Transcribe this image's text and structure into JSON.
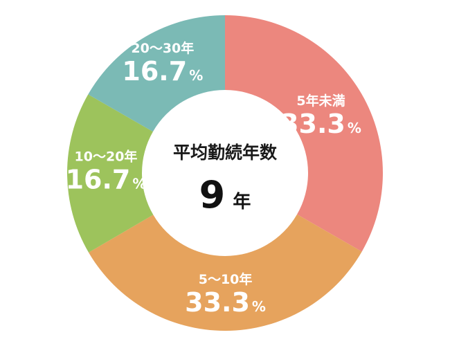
{
  "chart_data": {
    "type": "pie",
    "donut": true,
    "title": "",
    "center": {
      "label": "平均勤続年数",
      "value": "9",
      "unit": "年"
    },
    "slices": [
      {
        "name": "5年未満",
        "value": 33.3,
        "display": "33.3",
        "unit": "%",
        "color": "#ec877e"
      },
      {
        "name": "5～10年",
        "value": 33.3,
        "display": "33.3",
        "unit": "%",
        "color": "#e6a35d"
      },
      {
        "name": "10～20年",
        "value": 16.7,
        "display": "16.7",
        "unit": "%",
        "color": "#9dc35c"
      },
      {
        "name": "20～30年",
        "value": 16.7,
        "display": "16.7",
        "unit": "%",
        "color": "#7bbab5"
      }
    ]
  }
}
